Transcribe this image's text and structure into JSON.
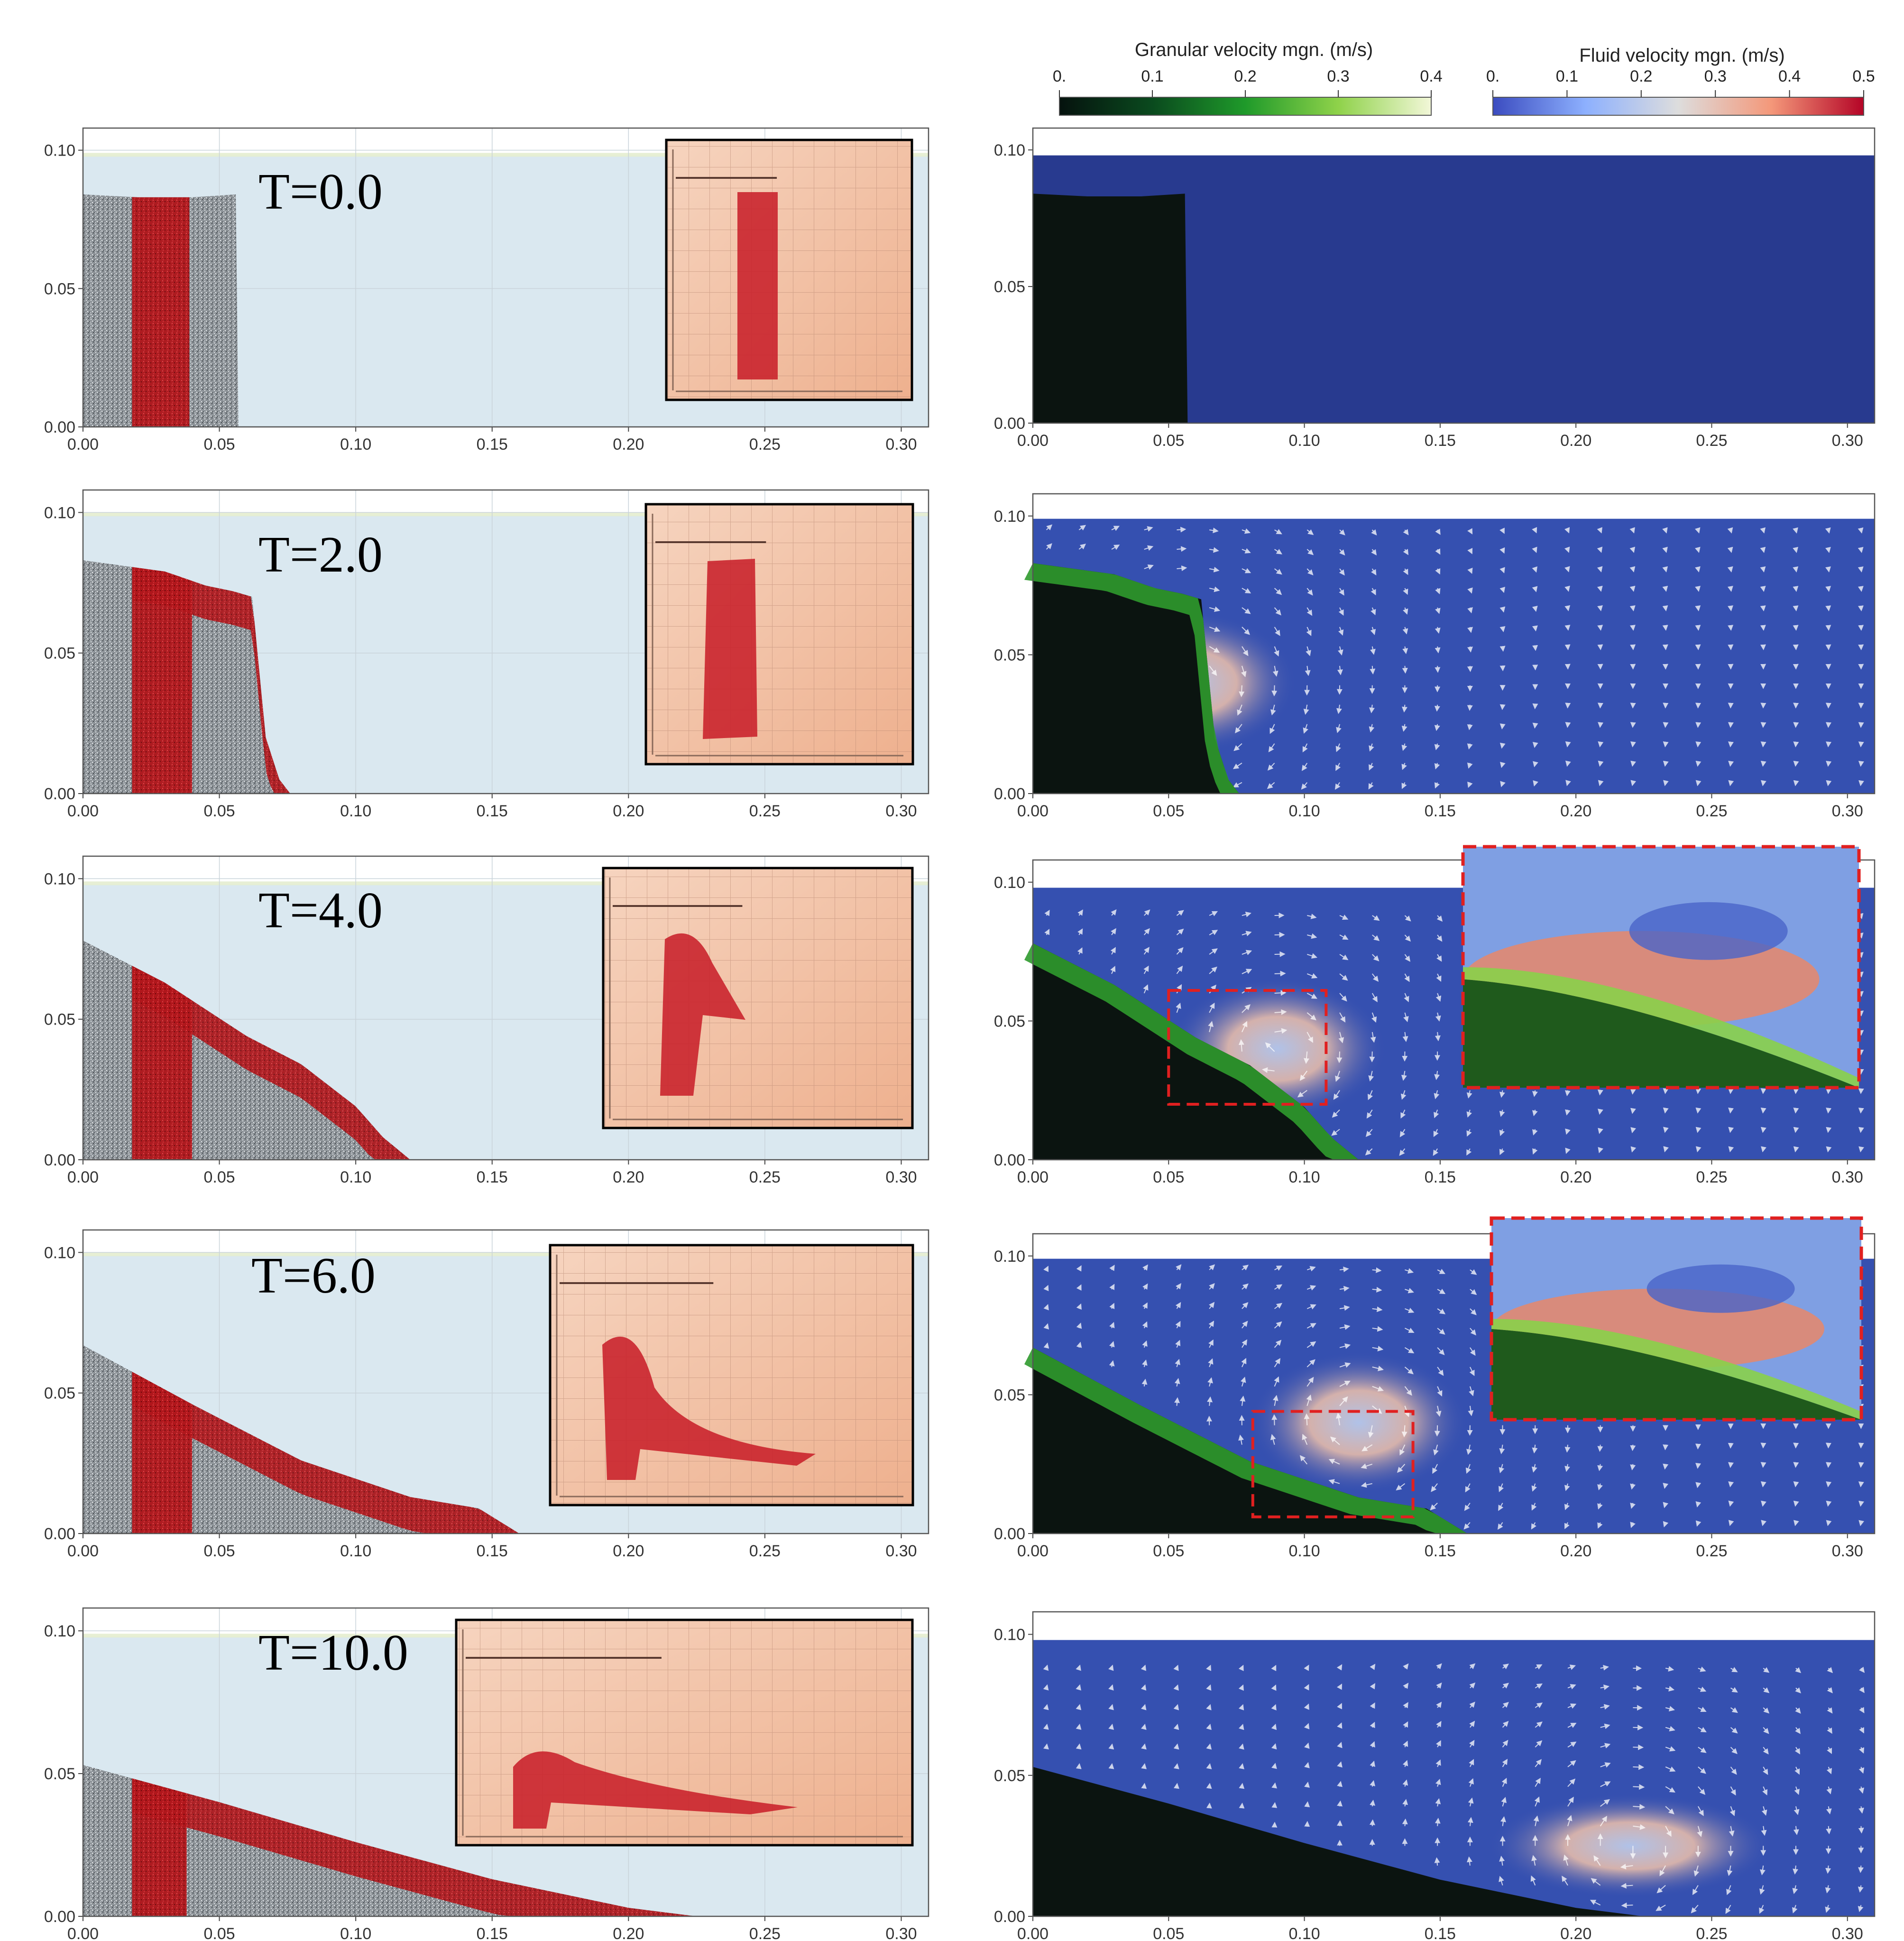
{
  "colorbars": {
    "granular": {
      "title": "Granular velocity mgn. (m/s)",
      "ticks": [
        "0.",
        "0.1",
        "0.2",
        "0.3",
        "0.4"
      ],
      "range": [
        0,
        0.4
      ],
      "colors": [
        "#05120e",
        "#0a4a1e",
        "#1f9a2a",
        "#8fd24a",
        "#f2f7d8"
      ]
    },
    "fluid": {
      "title": "Fluid velocity mgn. (m/s)",
      "ticks": [
        "0.",
        "0.1",
        "0.2",
        "0.3",
        "0.4",
        "0.5"
      ],
      "range": [
        0,
        0.5
      ],
      "colors": [
        "#3b4cc0",
        "#8db0fe",
        "#dddddd",
        "#f4987a",
        "#b40426"
      ]
    }
  },
  "axes": {
    "x_ticks": [
      "0.00",
      "0.05",
      "0.10",
      "0.15",
      "0.20",
      "0.25",
      "0.30"
    ],
    "y_ticks": [
      "0.00",
      "0.05",
      "0.10"
    ],
    "x_range": [
      0,
      0.31
    ],
    "y_range": [
      0,
      0.108
    ]
  },
  "colors": {
    "water_light": "#dae8f0",
    "granular_grey": "#8e9499",
    "tracer_red": "#b0161b",
    "fluid_deep_blue": "#283a8f",
    "fluid_mid_blue": "#3550b0",
    "granular_dark": "#0b1410",
    "granular_green": "#2f9a2d",
    "photo_bg": "#f3c2a6",
    "photo_red": "#c8202a",
    "zoom_border": "#e02020"
  },
  "panels": [
    {
      "time_label": "T=0.0",
      "profile": [
        [
          0,
          0.084
        ],
        [
          0.02,
          0.083
        ],
        [
          0.04,
          0.083
        ],
        [
          0.056,
          0.084
        ],
        [
          0.057,
          0
        ]
      ],
      "tracer": [
        0.018,
        0.039
      ],
      "water_level": 0.098,
      "has_vectors": false,
      "zoom": null
    },
    {
      "time_label": "T=2.0",
      "profile": [
        [
          0,
          0.083
        ],
        [
          0.03,
          0.079
        ],
        [
          0.045,
          0.074
        ],
        [
          0.055,
          0.072
        ],
        [
          0.062,
          0.07
        ],
        [
          0.064,
          0.05
        ],
        [
          0.067,
          0.02
        ],
        [
          0.072,
          0.005
        ],
        [
          0.076,
          0
        ]
      ],
      "tracer": [
        0.018,
        0.04
      ],
      "water_level": 0.099,
      "has_vectors": true,
      "zoom": null
    },
    {
      "time_label": "T=4.0",
      "profile": [
        [
          0,
          0.078
        ],
        [
          0.03,
          0.063
        ],
        [
          0.06,
          0.044
        ],
        [
          0.08,
          0.034
        ],
        [
          0.1,
          0.019
        ],
        [
          0.11,
          0.008
        ],
        [
          0.12,
          0
        ]
      ],
      "tracer": [
        0.018,
        0.04
      ],
      "water_level": 0.098,
      "has_vectors": true,
      "zoom": {
        "box": [
          0.05,
          0.02,
          0.108,
          0.061
        ]
      }
    },
    {
      "time_label": "T=6.0",
      "profile": [
        [
          0,
          0.067
        ],
        [
          0.04,
          0.046
        ],
        [
          0.08,
          0.026
        ],
        [
          0.12,
          0.013
        ],
        [
          0.145,
          0.009
        ],
        [
          0.16,
          0
        ]
      ],
      "tracer": [
        0.018,
        0.04
      ],
      "water_level": 0.099,
      "has_vectors": true,
      "zoom": {
        "box": [
          0.081,
          0.006,
          0.14,
          0.044
        ]
      }
    },
    {
      "time_label": "T=10.0",
      "profile": [
        [
          0,
          0.053
        ],
        [
          0.05,
          0.04
        ],
        [
          0.1,
          0.026
        ],
        [
          0.15,
          0.013
        ],
        [
          0.2,
          0.003
        ],
        [
          0.225,
          0
        ]
      ],
      "tracer": [
        0.018,
        0.038
      ],
      "water_level": 0.098,
      "has_vectors": true,
      "zoom": null
    }
  ]
}
